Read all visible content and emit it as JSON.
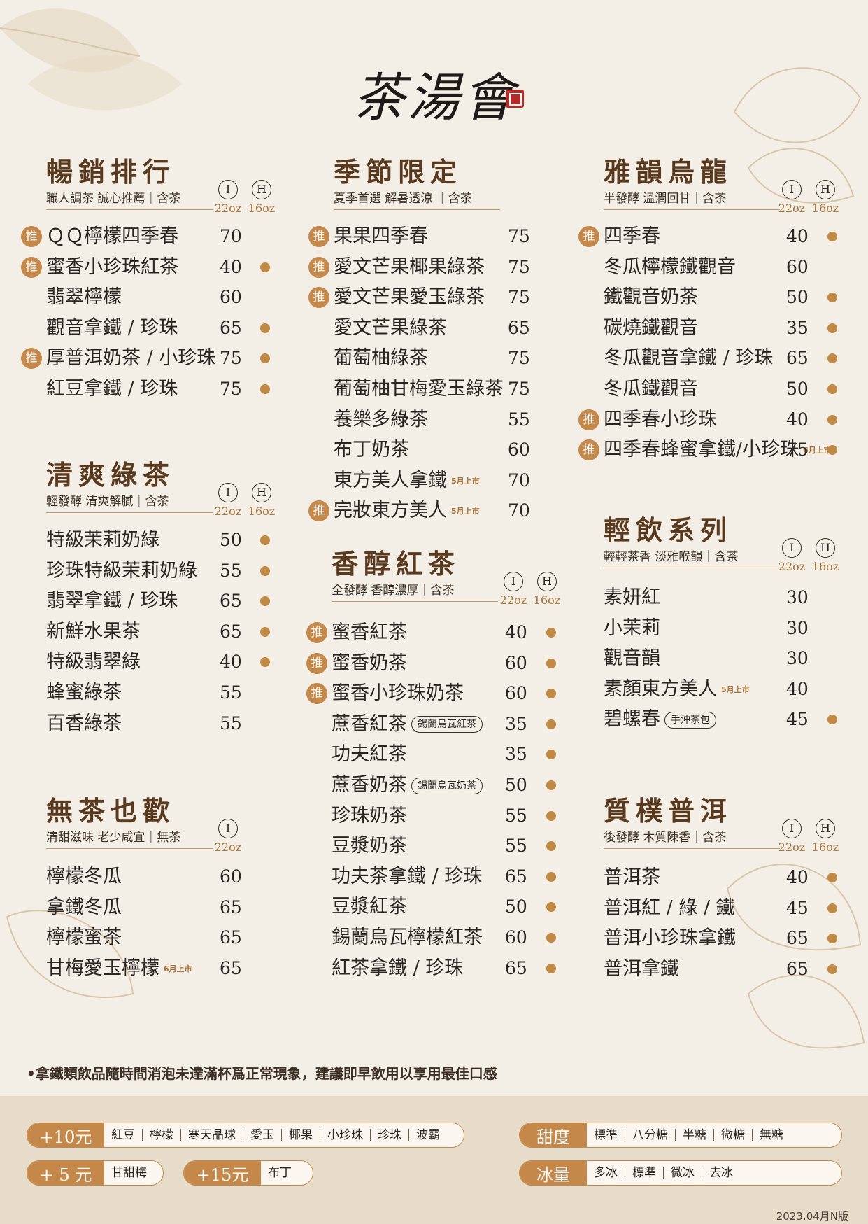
{
  "logo": {
    "text": "茶湯會"
  },
  "rec_label": "推",
  "sections": {
    "bestseller": {
      "title": "暢銷排行",
      "subtitle": "職人調茶  誠心推薦｜含茶",
      "sizes": [
        {
          "icon": "I",
          "oz": "22oz"
        },
        {
          "icon": "H",
          "oz": "16oz"
        }
      ],
      "items": [
        {
          "name": "ＱＱ檸檬四季春",
          "price": "70",
          "rec": true,
          "hot": false
        },
        {
          "name": "蜜香小珍珠紅茶",
          "price": "40",
          "rec": true,
          "hot": true
        },
        {
          "name": "翡翠檸檬",
          "price": "60",
          "rec": false,
          "hot": false
        },
        {
          "name": "觀音拿鐵 / 珍珠",
          "price": "65",
          "rec": false,
          "hot": true
        },
        {
          "name": "厚普洱奶茶 / 小珍珠",
          "price": "75",
          "rec": true,
          "hot": true
        },
        {
          "name": "紅豆拿鐵 / 珍珠",
          "price": "75",
          "rec": false,
          "hot": true
        }
      ]
    },
    "green": {
      "title": "清爽綠茶",
      "subtitle": "輕發酵  清爽解膩｜含茶",
      "sizes": [
        {
          "icon": "I",
          "oz": "22oz"
        },
        {
          "icon": "H",
          "oz": "16oz"
        }
      ],
      "items": [
        {
          "name": "特級茉莉奶綠",
          "price": "50",
          "rec": false,
          "hot": true
        },
        {
          "name": "珍珠特級茉莉奶綠",
          "price": "55",
          "rec": false,
          "hot": true
        },
        {
          "name": "翡翠拿鐵 / 珍珠",
          "price": "65",
          "rec": false,
          "hot": true
        },
        {
          "name": "新鮮水果茶",
          "price": "65",
          "rec": false,
          "hot": true
        },
        {
          "name": "特級翡翠綠",
          "price": "40",
          "rec": false,
          "hot": true
        },
        {
          "name": "蜂蜜綠茶",
          "price": "55",
          "rec": false,
          "hot": false
        },
        {
          "name": "百香綠茶",
          "price": "55",
          "rec": false,
          "hot": false
        }
      ]
    },
    "notea": {
      "title": "無茶也歡",
      "subtitle": "清甜滋味  老少咸宜｜無茶",
      "sizes": [
        {
          "icon": "I",
          "oz": "22oz"
        }
      ],
      "items": [
        {
          "name": "檸檬冬瓜",
          "price": "60",
          "rec": false,
          "hot": false
        },
        {
          "name": "拿鐵冬瓜",
          "price": "65",
          "rec": false,
          "hot": false
        },
        {
          "name": "檸檬蜜茶",
          "price": "65",
          "rec": false,
          "hot": false
        },
        {
          "name": "甘梅愛玉檸檬",
          "price": "65",
          "rec": false,
          "hot": false,
          "tag": "6月上市"
        }
      ]
    },
    "seasonal": {
      "title": "季節限定",
      "subtitle": "夏季首選 解暑透涼 ｜含茶",
      "items": [
        {
          "name": "果果四季春",
          "price": "75",
          "rec": true,
          "hot": false
        },
        {
          "name": "愛文芒果椰果綠茶",
          "price": "75",
          "rec": true,
          "hot": false
        },
        {
          "name": "愛文芒果愛玉綠茶",
          "price": "75",
          "rec": true,
          "hot": false
        },
        {
          "name": "愛文芒果綠茶",
          "price": "65",
          "rec": false,
          "hot": false
        },
        {
          "name": "葡萄柚綠茶",
          "price": "75",
          "rec": false,
          "hot": false
        },
        {
          "name": "葡萄柚甘梅愛玉綠茶",
          "price": "75",
          "rec": false,
          "hot": false
        },
        {
          "name": "養樂多綠茶",
          "price": "55",
          "rec": false,
          "hot": false
        },
        {
          "name": "布丁奶茶",
          "price": "60",
          "rec": false,
          "hot": false
        },
        {
          "name": "東方美人拿鐵",
          "price": "70",
          "rec": false,
          "hot": false,
          "tag": "5月上市"
        },
        {
          "name": "完妝東方美人",
          "price": "70",
          "rec": true,
          "hot": false,
          "tag": "5月上市"
        }
      ]
    },
    "black": {
      "title": "香醇紅茶",
      "subtitle": "全發酵  香醇濃厚｜含茶",
      "sizes": [
        {
          "icon": "I",
          "oz": "22oz"
        },
        {
          "icon": "H",
          "oz": "16oz"
        }
      ],
      "items": [
        {
          "name": "蜜香紅茶",
          "price": "40",
          "rec": true,
          "hot": true
        },
        {
          "name": "蜜香奶茶",
          "price": "60",
          "rec": true,
          "hot": true
        },
        {
          "name": "蜜香小珍珠奶茶",
          "price": "60",
          "rec": true,
          "hot": true
        },
        {
          "name": "蔗香紅茶",
          "price": "35",
          "rec": false,
          "hot": true,
          "pill": "錫蘭烏瓦紅茶"
        },
        {
          "name": "功夫紅茶",
          "price": "35",
          "rec": false,
          "hot": true
        },
        {
          "name": "蔗香奶茶",
          "price": "50",
          "rec": false,
          "hot": true,
          "pill": "錫蘭烏瓦奶茶"
        },
        {
          "name": "珍珠奶茶",
          "price": "55",
          "rec": false,
          "hot": true
        },
        {
          "name": "豆漿奶茶",
          "price": "55",
          "rec": false,
          "hot": true
        },
        {
          "name": "功夫茶拿鐵 / 珍珠",
          "price": "65",
          "rec": false,
          "hot": true
        },
        {
          "name": "豆漿紅茶",
          "price": "50",
          "rec": false,
          "hot": true
        },
        {
          "name": "錫蘭烏瓦檸檬紅茶",
          "price": "60",
          "rec": false,
          "hot": true
        },
        {
          "name": "紅茶拿鐵 / 珍珠",
          "price": "65",
          "rec": false,
          "hot": true
        }
      ]
    },
    "oolong": {
      "title": "雅韻烏龍",
      "subtitle": "半發酵  溫潤回甘｜含茶",
      "sizes": [
        {
          "icon": "I",
          "oz": "22oz"
        },
        {
          "icon": "H",
          "oz": "16oz"
        }
      ],
      "items": [
        {
          "name": "四季春",
          "price": "40",
          "rec": true,
          "hot": true
        },
        {
          "name": "冬瓜檸檬鐵觀音",
          "price": "60",
          "rec": false,
          "hot": false
        },
        {
          "name": "鐵觀音奶茶",
          "price": "50",
          "rec": false,
          "hot": true
        },
        {
          "name": "碳燒鐵觀音",
          "price": "35",
          "rec": false,
          "hot": true
        },
        {
          "name": "冬瓜觀音拿鐵 / 珍珠",
          "price": "65",
          "rec": false,
          "hot": true
        },
        {
          "name": "冬瓜鐵觀音",
          "price": "50",
          "rec": false,
          "hot": true
        },
        {
          "name": "四季春小珍珠",
          "price": "40",
          "rec": true,
          "hot": true
        },
        {
          "name": "四季春蜂蜜拿鐵/小珍珠",
          "price": "75",
          "rec": true,
          "hot": true,
          "tag": "6月上市"
        }
      ]
    },
    "light": {
      "title": "輕飲系列",
      "subtitle": "輕輕茶香  淡雅喉韻｜含茶",
      "sizes": [
        {
          "icon": "I",
          "oz": "22oz"
        },
        {
          "icon": "H",
          "oz": "16oz"
        }
      ],
      "items": [
        {
          "name": "素妍紅",
          "price": "30",
          "rec": false,
          "hot": false
        },
        {
          "name": "小茉莉",
          "price": "30",
          "rec": false,
          "hot": false
        },
        {
          "name": "觀音韻",
          "price": "30",
          "rec": false,
          "hot": false
        },
        {
          "name": "素顏東方美人",
          "price": "40",
          "rec": false,
          "hot": false,
          "tag": "5月上市"
        },
        {
          "name": "碧螺春",
          "price": "45",
          "rec": false,
          "hot": true,
          "pill": "手沖茶包"
        }
      ]
    },
    "puer": {
      "title": "質樸普洱",
      "subtitle": "後發酵  木質陳香｜含茶",
      "sizes": [
        {
          "icon": "I",
          "oz": "22oz"
        },
        {
          "icon": "H",
          "oz": "16oz"
        }
      ],
      "items": [
        {
          "name": "普洱茶",
          "price": "40",
          "rec": false,
          "hot": true
        },
        {
          "name": "普洱紅 / 綠 / 鐵",
          "price": "45",
          "rec": false,
          "hot": true
        },
        {
          "name": "普洱小珍珠拿鐵",
          "price": "65",
          "rec": false,
          "hot": true
        },
        {
          "name": "普洱拿鐵",
          "price": "65",
          "rec": false,
          "hot": true
        }
      ]
    }
  },
  "note": "•拿鐵類飲品隨時間消泡未達滿杯爲正常現象，建議即早飲用以享用最佳口感",
  "addons": {
    "plus10": {
      "label": "+10元",
      "options": [
        "紅豆",
        "檸檬",
        "寒天晶球",
        "愛玉",
        "椰果",
        "小珍珠",
        "珍珠",
        "波霸"
      ]
    },
    "plus5": {
      "label": "+ 5 元",
      "options": [
        "甘甜梅"
      ]
    },
    "plus15": {
      "label": "+15元",
      "options": [
        "布丁"
      ]
    }
  },
  "sweetness": {
    "label": "甜度",
    "options": [
      "標準",
      "八分糖",
      "半糖",
      "微糖",
      "無糖"
    ]
  },
  "ice": {
    "label": "冰量",
    "options": [
      "多冰",
      "標準",
      "微冰",
      "去冰"
    ]
  },
  "version": "2023.04月N版"
}
